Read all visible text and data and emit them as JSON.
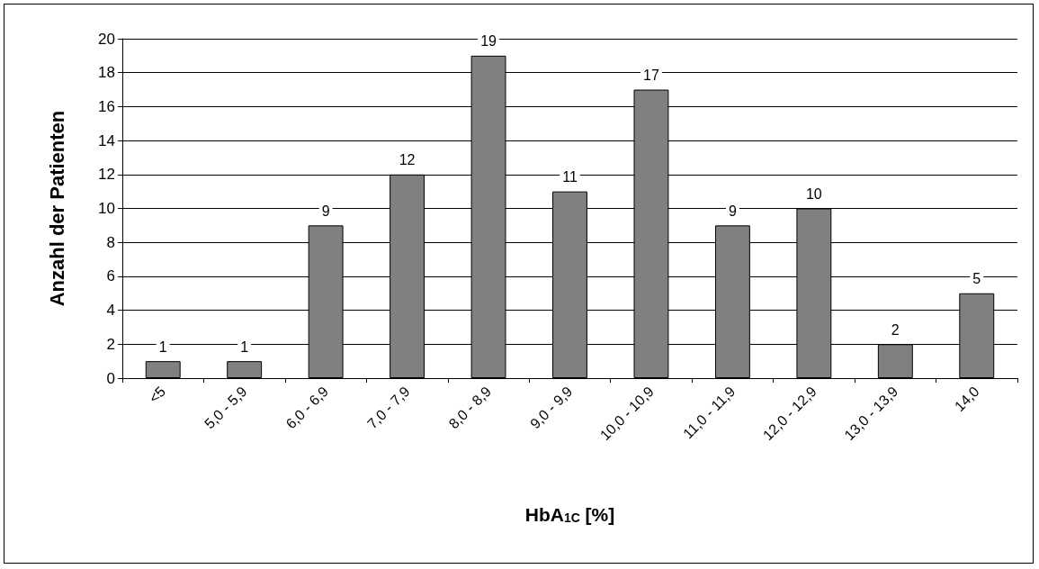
{
  "chart_data": {
    "type": "bar",
    "xlabel": "HbA$_{1C}$ [%]",
    "ylabel": "Anzahl der Patienten",
    "categories": [
      "<5",
      "5,0 - 5,9",
      "6,0 - 6,9",
      "7,0 - 7,9",
      "8,0 - 8,9",
      "9,0 - 9,9",
      "10,0 - 10,9",
      "11,0 - 11,9",
      "12,0 - 12,9",
      "13,0 - 13,9",
      "14,0"
    ],
    "values": [
      1,
      1,
      9,
      12,
      19,
      11,
      17,
      9,
      10,
      2,
      5
    ],
    "color": "#808080",
    "ylim": [
      0,
      20
    ],
    "yticks": [
      0,
      2,
      4,
      6,
      8,
      10,
      12,
      14,
      16,
      18,
      20
    ],
    "grid": "y",
    "data_labels": true
  }
}
